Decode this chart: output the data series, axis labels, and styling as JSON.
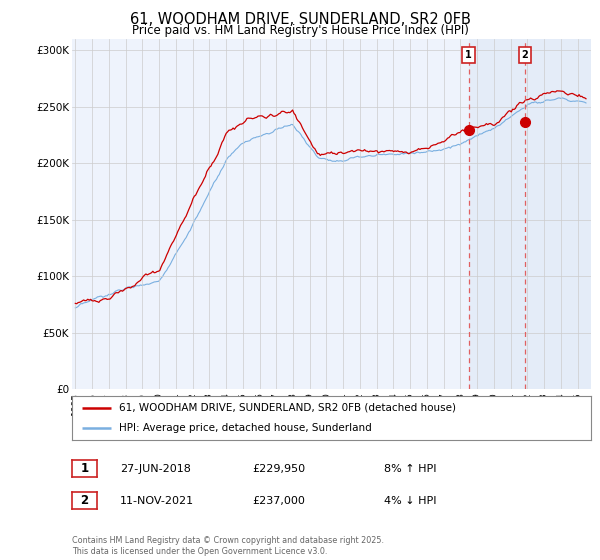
{
  "title": "61, WOODHAM DRIVE, SUNDERLAND, SR2 0FB",
  "subtitle": "Price paid vs. HM Land Registry's House Price Index (HPI)",
  "legend_line1": "61, WOODHAM DRIVE, SUNDERLAND, SR2 0FB (detached house)",
  "legend_line2": "HPI: Average price, detached house, Sunderland",
  "footnote": "Contains HM Land Registry data © Crown copyright and database right 2025.\nThis data is licensed under the Open Government Licence v3.0.",
  "event1_date": "27-JUN-2018",
  "event1_price": "£229,950",
  "event1_hpi": "8% ↑ HPI",
  "event2_date": "11-NOV-2021",
  "event2_price": "£237,000",
  "event2_hpi": "4% ↓ HPI",
  "hpi_line_color": "#7aafe0",
  "price_line_color": "#cc0000",
  "background_color": "#ffffff",
  "plot_bg_color": "#eef3fc",
  "grid_color": "#cccccc",
  "event1_x": 2018.5,
  "event2_x": 2021.85,
  "event1_y": 229950,
  "event2_y": 237000,
  "ylim": [
    0,
    310000
  ],
  "xlim_start": 1994.8,
  "xlim_end": 2025.8,
  "yticks": [
    0,
    50000,
    100000,
    150000,
    200000,
    250000,
    300000
  ],
  "ylabels": [
    "£0",
    "£50K",
    "£100K",
    "£150K",
    "£200K",
    "£250K",
    "£300K"
  ]
}
